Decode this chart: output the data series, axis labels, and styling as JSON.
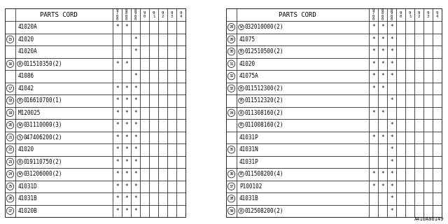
{
  "watermark": "A410A00149",
  "left_table": {
    "col_header_label": "PARTS CORD",
    "year_cols": [
      "9\n7\n0\n0",
      "8\n8\n0\n0",
      "8\n9\n0\n0",
      "9\n0",
      "9\n1",
      "9\n2",
      "9\n3",
      "9\n4"
    ],
    "rows": [
      {
        "num": "",
        "prefix": "",
        "part": "41020A",
        "marks": [
          1,
          1,
          0,
          0,
          0,
          0,
          0,
          0
        ]
      },
      {
        "num": "15",
        "prefix": "",
        "part": "41020",
        "marks": [
          0,
          0,
          1,
          0,
          0,
          0,
          0,
          0
        ]
      },
      {
        "num": "",
        "prefix": "",
        "part": "41020A",
        "marks": [
          0,
          0,
          1,
          0,
          0,
          0,
          0,
          0
        ]
      },
      {
        "num": "16",
        "prefix": "B",
        "part": "011510350(2)",
        "marks": [
          1,
          1,
          0,
          0,
          0,
          0,
          0,
          0
        ]
      },
      {
        "num": "",
        "prefix": "",
        "part": "41086",
        "marks": [
          0,
          0,
          1,
          0,
          0,
          0,
          0,
          0
        ]
      },
      {
        "num": "17",
        "prefix": "",
        "part": "41042",
        "marks": [
          1,
          1,
          1,
          0,
          0,
          0,
          0,
          0
        ]
      },
      {
        "num": "18",
        "prefix": "B",
        "part": "016610700(1)",
        "marks": [
          1,
          1,
          1,
          0,
          0,
          0,
          0,
          0
        ]
      },
      {
        "num": "19",
        "prefix": "",
        "part": "M120025",
        "marks": [
          1,
          1,
          1,
          0,
          0,
          0,
          0,
          0
        ]
      },
      {
        "num": "20",
        "prefix": "W",
        "part": "031110000(3)",
        "marks": [
          1,
          1,
          1,
          0,
          0,
          0,
          0,
          0
        ]
      },
      {
        "num": "21",
        "prefix": "S",
        "part": "047406200(2)",
        "marks": [
          1,
          1,
          1,
          0,
          0,
          0,
          0,
          0
        ]
      },
      {
        "num": "22",
        "prefix": "",
        "part": "41020",
        "marks": [
          1,
          1,
          1,
          0,
          0,
          0,
          0,
          0
        ]
      },
      {
        "num": "23",
        "prefix": "B",
        "part": "019110750(2)",
        "marks": [
          1,
          1,
          1,
          0,
          0,
          0,
          0,
          0
        ]
      },
      {
        "num": "24",
        "prefix": "W",
        "part": "031206000(2)",
        "marks": [
          1,
          1,
          1,
          0,
          0,
          0,
          0,
          0
        ]
      },
      {
        "num": "25",
        "prefix": "",
        "part": "41031D",
        "marks": [
          1,
          1,
          1,
          0,
          0,
          0,
          0,
          0
        ]
      },
      {
        "num": "26",
        "prefix": "",
        "part": "41031B",
        "marks": [
          1,
          1,
          1,
          0,
          0,
          0,
          0,
          0
        ]
      },
      {
        "num": "27",
        "prefix": "",
        "part": "41020B",
        "marks": [
          1,
          1,
          1,
          0,
          0,
          0,
          0,
          0
        ]
      }
    ]
  },
  "right_table": {
    "col_header_label": "PARTS CORD",
    "year_cols": [
      "9\n7\n0\n0",
      "8\n8\n0\n0",
      "8\n9\n0\n0",
      "9\n0",
      "9\n1",
      "9\n2",
      "9\n3",
      "9\n4"
    ],
    "rows": [
      {
        "num": "28",
        "prefix": "W",
        "part": "032010000(2)",
        "marks": [
          1,
          1,
          1,
          0,
          0,
          0,
          0,
          0
        ]
      },
      {
        "num": "29",
        "prefix": "",
        "part": "41075",
        "marks": [
          1,
          1,
          1,
          0,
          0,
          0,
          0,
          0
        ]
      },
      {
        "num": "30",
        "prefix": "B",
        "part": "012510500(2)",
        "marks": [
          1,
          1,
          1,
          0,
          0,
          0,
          0,
          0
        ]
      },
      {
        "num": "31",
        "prefix": "",
        "part": "41020",
        "marks": [
          1,
          1,
          1,
          0,
          0,
          0,
          0,
          0
        ]
      },
      {
        "num": "32",
        "prefix": "",
        "part": "41075A",
        "marks": [
          1,
          1,
          1,
          0,
          0,
          0,
          0,
          0
        ]
      },
      {
        "num": "33",
        "prefix": "B",
        "part": "011512300(2)",
        "marks": [
          1,
          1,
          0,
          0,
          0,
          0,
          0,
          0
        ]
      },
      {
        "num": "",
        "prefix": "B",
        "part": "011512320(2)",
        "marks": [
          0,
          0,
          1,
          0,
          0,
          0,
          0,
          0
        ]
      },
      {
        "num": "34",
        "prefix": "B",
        "part": "011308160(2)",
        "marks": [
          1,
          1,
          0,
          0,
          0,
          0,
          0,
          0
        ]
      },
      {
        "num": "",
        "prefix": "B",
        "part": "011008160(2)",
        "marks": [
          0,
          0,
          1,
          0,
          0,
          0,
          0,
          0
        ]
      },
      {
        "num": "",
        "prefix": "",
        "part": "41031P",
        "marks": [
          1,
          1,
          1,
          0,
          0,
          0,
          0,
          0
        ]
      },
      {
        "num": "35",
        "prefix": "",
        "part": "41031N",
        "marks": [
          0,
          0,
          1,
          0,
          0,
          0,
          0,
          0
        ]
      },
      {
        "num": "",
        "prefix": "",
        "part": "41031P",
        "marks": [
          0,
          0,
          1,
          0,
          0,
          0,
          0,
          0
        ]
      },
      {
        "num": "36",
        "prefix": "B",
        "part": "011508200(4)",
        "marks": [
          1,
          1,
          1,
          0,
          0,
          0,
          0,
          0
        ]
      },
      {
        "num": "37",
        "prefix": "",
        "part": "P100102",
        "marks": [
          1,
          1,
          1,
          0,
          0,
          0,
          0,
          0
        ]
      },
      {
        "num": "38",
        "prefix": "",
        "part": "41031B",
        "marks": [
          0,
          0,
          1,
          0,
          0,
          0,
          0,
          0
        ]
      },
      {
        "num": "39",
        "prefix": "B",
        "part": "012508200(2)",
        "marks": [
          0,
          0,
          1,
          0,
          0,
          0,
          0,
          0
        ]
      }
    ]
  },
  "bg_color": "#ffffff",
  "line_color": "#000000",
  "text_color": "#000000"
}
